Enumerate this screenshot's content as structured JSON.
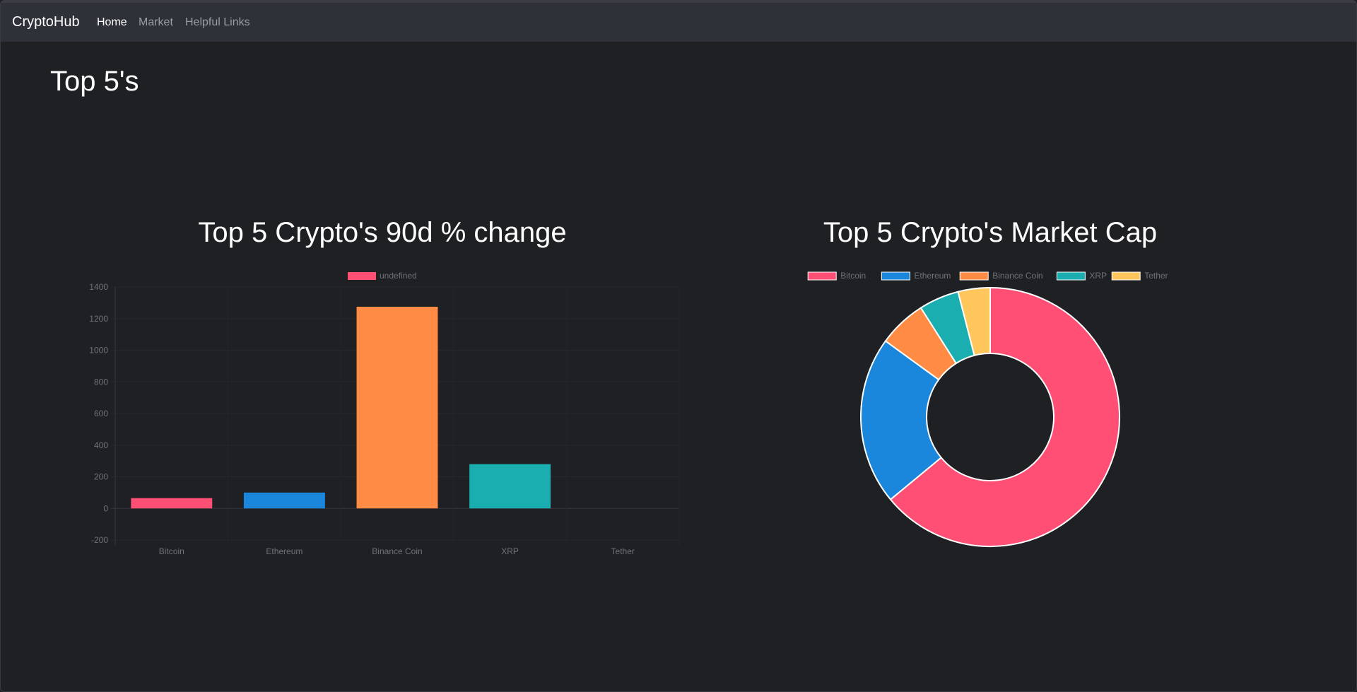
{
  "navbar": {
    "brand": "CryptoHub",
    "items": [
      {
        "label": "Home",
        "active": true
      },
      {
        "label": "Market",
        "active": false
      },
      {
        "label": "Helpful Links",
        "active": false
      }
    ]
  },
  "page": {
    "title": "Top 5's"
  },
  "charts": {
    "bar_title": "Top 5 Crypto's 90d % change",
    "donut_title": "Top 5 Crypto's Market Cap"
  },
  "colors": {
    "Bitcoin": "#ff4f74",
    "Ethereum": "#1b87dc",
    "Binance Coin": "#ff8b45",
    "XRP": "#1aaeb0",
    "Tether": "#ffc65c"
  },
  "chart_data": [
    {
      "type": "bar",
      "title": "Top 5 Crypto's 90d % change",
      "categories": [
        "Bitcoin",
        "Ethereum",
        "Binance Coin",
        "XRP",
        "Tether"
      ],
      "series": [
        {
          "name": "undefined",
          "values": [
            65,
            100,
            1275,
            280,
            0
          ]
        }
      ],
      "ylim": [
        -200,
        1400
      ],
      "yticks": [
        1400,
        1200,
        1000,
        800,
        600,
        400,
        200,
        0,
        -200
      ],
      "legend": "top",
      "grid": true
    },
    {
      "type": "pie",
      "title": "Top 5 Crypto's Market Cap",
      "categories": [
        "Bitcoin",
        "Ethereum",
        "Binance Coin",
        "XRP",
        "Tether"
      ],
      "values": [
        64,
        21,
        6,
        5,
        4
      ],
      "legend": "top"
    }
  ]
}
